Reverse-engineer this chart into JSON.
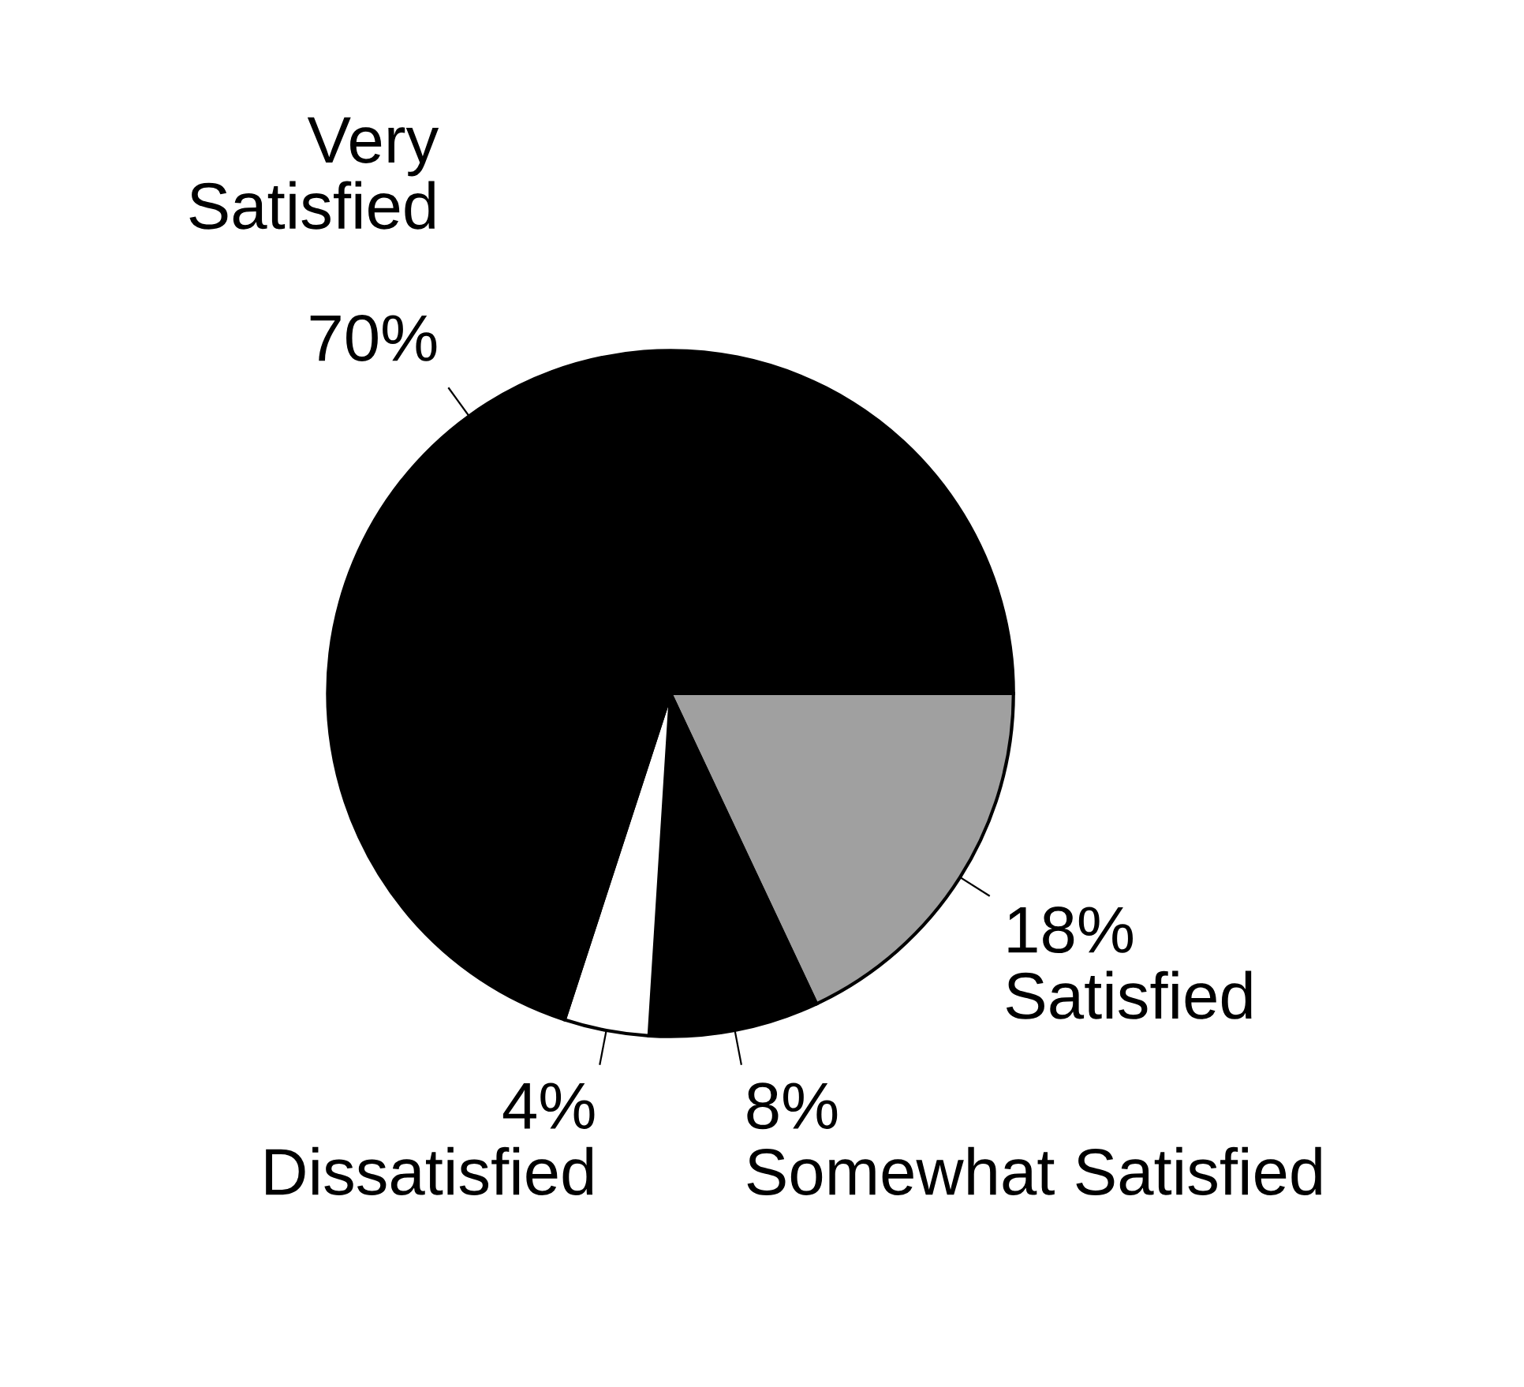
{
  "chart_data": {
    "type": "pie",
    "categories": [
      "Satisfied",
      "Somewhat Satisfied",
      "Dissatisfied",
      "Very Satisfied"
    ],
    "values": [
      18,
      8,
      4,
      70
    ],
    "value_labels": [
      "18%",
      "8%",
      "4%",
      "70%"
    ],
    "colors": [
      "#a0a0a0",
      "#000000",
      "#ffffff",
      "#000000"
    ]
  }
}
